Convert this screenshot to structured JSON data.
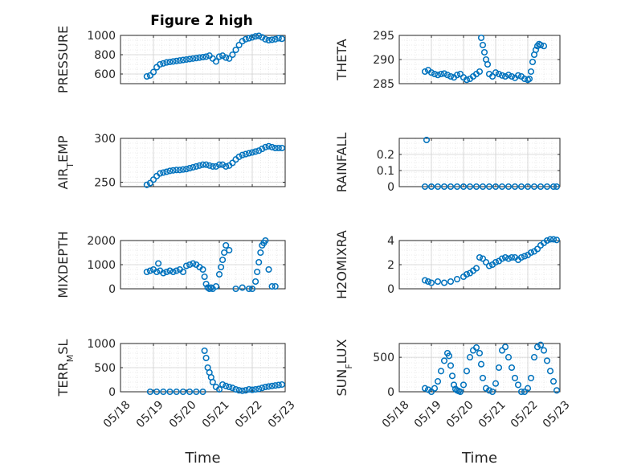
{
  "figure": {
    "title": "Figure 2 high"
  },
  "chart_data": [
    {
      "type": "scatter",
      "ylabel": "PRESSURE",
      "xlabel": "",
      "xlim": [
        18,
        23
      ],
      "ylim": [
        500,
        1000
      ],
      "yticks": [
        600,
        800,
        1000
      ],
      "xticks": [],
      "grid": true,
      "x": [
        18.8,
        18.9,
        19.0,
        19.1,
        19.2,
        19.3,
        19.4,
        19.5,
        19.6,
        19.7,
        19.8,
        19.9,
        20.0,
        20.1,
        20.2,
        20.3,
        20.4,
        20.5,
        20.6,
        20.7,
        20.8,
        20.9,
        21.0,
        21.1,
        21.2,
        21.3,
        21.4,
        21.5,
        21.6,
        21.7,
        21.8,
        21.9,
        22.0,
        22.1,
        22.2,
        22.3,
        22.4,
        22.5,
        22.6,
        22.7,
        22.8,
        22.9
      ],
      "y": [
        575,
        585,
        620,
        670,
        700,
        710,
        720,
        725,
        730,
        735,
        740,
        745,
        750,
        755,
        760,
        765,
        770,
        775,
        780,
        790,
        760,
        730,
        780,
        790,
        770,
        760,
        800,
        850,
        900,
        940,
        960,
        970,
        980,
        990,
        995,
        980,
        960,
        950,
        955,
        960,
        970,
        965
      ]
    },
    {
      "type": "scatter",
      "ylabel": "THETA",
      "xlabel": "",
      "xlim": [
        18,
        23
      ],
      "ylim": [
        285,
        295
      ],
      "yticks": [
        285,
        290,
        295
      ],
      "xticks": [],
      "grid": true,
      "x": [
        18.8,
        18.9,
        19.0,
        19.1,
        19.2,
        19.3,
        19.4,
        19.5,
        19.6,
        19.7,
        19.8,
        19.9,
        20.0,
        20.1,
        20.2,
        20.3,
        20.4,
        20.5,
        20.55,
        20.6,
        20.65,
        20.7,
        20.75,
        20.8,
        20.9,
        21.0,
        21.1,
        21.2,
        21.3,
        21.4,
        21.5,
        21.6,
        21.7,
        21.8,
        21.9,
        22.0,
        22.05,
        22.1,
        22.15,
        22.2,
        22.25,
        22.3,
        22.35,
        22.4,
        22.5
      ],
      "y": [
        287.5,
        287.8,
        287.3,
        287,
        286.8,
        287,
        287.1,
        286.8,
        286.5,
        286.3,
        286.8,
        287,
        286.3,
        285.8,
        286,
        286.5,
        287,
        287.5,
        294.5,
        293,
        291.5,
        290,
        289,
        287,
        286.5,
        287.3,
        287,
        286.7,
        286.5,
        286.8,
        286.5,
        286.2,
        286.7,
        286.5,
        286,
        285.8,
        286,
        287.5,
        289.5,
        291,
        292,
        292.8,
        293.2,
        293,
        292.8
      ]
    },
    {
      "type": "scatter",
      "ylabel": "AIR_TEMP",
      "xlabel": "",
      "xlim": [
        18,
        23
      ],
      "ylim": [
        245,
        300
      ],
      "yticks": [
        250,
        300
      ],
      "xticks": [],
      "grid": true,
      "x": [
        18.8,
        18.9,
        19.0,
        19.1,
        19.2,
        19.3,
        19.4,
        19.5,
        19.6,
        19.7,
        19.8,
        19.9,
        20.0,
        20.1,
        20.2,
        20.3,
        20.4,
        20.5,
        20.6,
        20.7,
        20.8,
        20.9,
        21.0,
        21.1,
        21.2,
        21.3,
        21.4,
        21.5,
        21.6,
        21.7,
        21.8,
        21.9,
        22.0,
        22.1,
        22.2,
        22.3,
        22.4,
        22.5,
        22.6,
        22.7,
        22.8,
        22.9
      ],
      "y": [
        247,
        249,
        253,
        257,
        260,
        261,
        262,
        263,
        263.5,
        264,
        264,
        264.5,
        265,
        266,
        267,
        268,
        269,
        270,
        270,
        269,
        268,
        268,
        270,
        270,
        268,
        269,
        272,
        276,
        279,
        281,
        282,
        283,
        284,
        285,
        286,
        288,
        290,
        291,
        290,
        289,
        289,
        289
      ]
    },
    {
      "type": "scatter",
      "ylabel": "RAINFALL",
      "xlabel": "",
      "xlim": [
        18,
        23
      ],
      "ylim": [
        0,
        0.3
      ],
      "yticks": [
        0,
        0.1,
        0.2
      ],
      "xticks": [],
      "grid": true,
      "x": [
        18.8,
        18.85,
        19.0,
        19.2,
        19.4,
        19.6,
        19.8,
        20.0,
        20.2,
        20.4,
        20.6,
        20.8,
        21.0,
        21.2,
        21.4,
        21.6,
        21.8,
        22.0,
        22.2,
        22.4,
        22.6,
        22.8,
        22.9
      ],
      "y": [
        0,
        0.29,
        0,
        0,
        0,
        0,
        0,
        0,
        0,
        0,
        0,
        0,
        0,
        0,
        0,
        0,
        0,
        0,
        0,
        0,
        0,
        0,
        0
      ]
    },
    {
      "type": "scatter",
      "ylabel": "MIXDEPTH",
      "xlabel": "",
      "xlim": [
        18,
        23
      ],
      "ylim": [
        0,
        2000
      ],
      "yticks": [
        0,
        1000,
        2000
      ],
      "xticks": [],
      "grid": true,
      "x": [
        18.8,
        18.9,
        19.0,
        19.1,
        19.15,
        19.2,
        19.3,
        19.4,
        19.5,
        19.6,
        19.7,
        19.8,
        19.9,
        20.0,
        20.1,
        20.2,
        20.3,
        20.4,
        20.5,
        20.55,
        20.6,
        20.65,
        20.7,
        20.75,
        20.8,
        20.9,
        21.0,
        21.05,
        21.1,
        21.15,
        21.2,
        21.3,
        21.5,
        21.7,
        21.9,
        22.0,
        22.1,
        22.15,
        22.2,
        22.25,
        22.3,
        22.35,
        22.4,
        22.5,
        22.6,
        22.7
      ],
      "y": [
        700,
        750,
        800,
        700,
        1050,
        750,
        650,
        700,
        750,
        700,
        750,
        800,
        700,
        950,
        1000,
        1050,
        1000,
        900,
        800,
        500,
        200,
        50,
        0,
        50,
        0,
        100,
        600,
        900,
        1200,
        1500,
        1800,
        1600,
        0,
        50,
        0,
        0,
        300,
        700,
        1100,
        1500,
        1800,
        1900,
        2000,
        800,
        100,
        100
      ]
    },
    {
      "type": "scatter",
      "ylabel": "H2OMIXRA",
      "xlabel": "",
      "xlim": [
        18,
        23
      ],
      "ylim": [
        0,
        4
      ],
      "yticks": [
        0,
        2,
        4
      ],
      "xticks": [],
      "grid": true,
      "x": [
        18.8,
        18.9,
        19.0,
        19.2,
        19.4,
        19.6,
        19.8,
        20.0,
        20.1,
        20.2,
        20.3,
        20.4,
        20.5,
        20.6,
        20.7,
        20.8,
        20.9,
        21.0,
        21.1,
        21.2,
        21.3,
        21.4,
        21.5,
        21.6,
        21.7,
        21.8,
        21.9,
        22.0,
        22.1,
        22.2,
        22.3,
        22.4,
        22.5,
        22.6,
        22.7,
        22.8,
        22.9
      ],
      "y": [
        0.7,
        0.6,
        0.5,
        0.6,
        0.5,
        0.6,
        0.8,
        1.0,
        1.2,
        1.3,
        1.5,
        1.7,
        2.6,
        2.5,
        2.2,
        1.9,
        2.0,
        2.2,
        2.3,
        2.5,
        2.6,
        2.5,
        2.6,
        2.6,
        2.4,
        2.6,
        2.7,
        2.8,
        3.0,
        3.1,
        3.3,
        3.6,
        3.8,
        4.0,
        4.1,
        4.1,
        4.05
      ]
    },
    {
      "type": "scatter",
      "ylabel": "TERR_MSL",
      "xlabel": "Time",
      "xlim": [
        18,
        23
      ],
      "ylim": [
        0,
        1000
      ],
      "yticks": [
        0,
        500,
        1000
      ],
      "xticks": [
        "05/18",
        "05/19",
        "05/20",
        "05/21",
        "05/22",
        "05/23"
      ],
      "grid": true,
      "x": [
        18.9,
        19.1,
        19.3,
        19.5,
        19.7,
        19.9,
        20.1,
        20.3,
        20.5,
        20.55,
        20.6,
        20.65,
        20.7,
        20.75,
        20.8,
        20.9,
        21.0,
        21.1,
        21.2,
        21.3,
        21.4,
        21.5,
        21.6,
        21.7,
        21.8,
        21.9,
        22.0,
        22.1,
        22.2,
        22.3,
        22.4,
        22.5,
        22.6,
        22.7,
        22.8,
        22.9
      ],
      "y": [
        0,
        0,
        0,
        0,
        0,
        0,
        0,
        0,
        0,
        850,
        700,
        500,
        400,
        300,
        200,
        100,
        50,
        150,
        120,
        100,
        80,
        50,
        30,
        20,
        30,
        50,
        40,
        50,
        60,
        80,
        100,
        110,
        120,
        130,
        140,
        150
      ]
    },
    {
      "type": "scatter",
      "ylabel": "SUN_FLUX",
      "xlabel": "Time",
      "xlim": [
        18,
        23
      ],
      "ylim": [
        0,
        700
      ],
      "yticks": [
        0,
        500
      ],
      "xticks": [
        "05/18",
        "05/19",
        "05/20",
        "05/21",
        "05/22",
        "05/23"
      ],
      "grid": true,
      "x": [
        18.8,
        18.9,
        19.0,
        19.1,
        19.2,
        19.3,
        19.4,
        19.5,
        19.55,
        19.6,
        19.65,
        19.7,
        19.75,
        19.8,
        19.85,
        19.9,
        20.0,
        20.1,
        20.2,
        20.3,
        20.4,
        20.5,
        20.55,
        20.6,
        20.7,
        20.8,
        20.9,
        21.0,
        21.1,
        21.2,
        21.3,
        21.4,
        21.5,
        21.6,
        21.7,
        21.8,
        21.9,
        22.0,
        22.1,
        22.2,
        22.3,
        22.4,
        22.5,
        22.6,
        22.7,
        22.8,
        22.9
      ],
      "y": [
        50,
        30,
        0,
        50,
        150,
        300,
        450,
        560,
        520,
        380,
        230,
        100,
        40,
        20,
        10,
        0,
        100,
        300,
        500,
        600,
        640,
        560,
        400,
        200,
        50,
        20,
        0,
        120,
        350,
        600,
        650,
        500,
        350,
        200,
        100,
        0,
        0,
        50,
        200,
        500,
        650,
        680,
        600,
        450,
        300,
        150,
        20
      ]
    }
  ]
}
